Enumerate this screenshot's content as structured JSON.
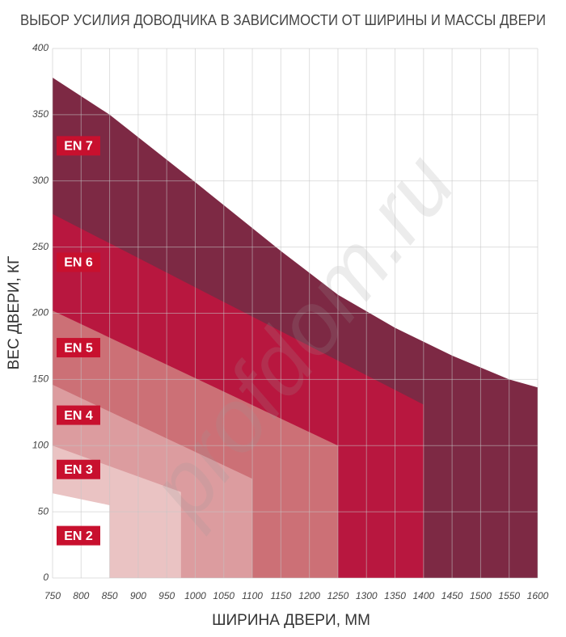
{
  "chart_data": {
    "type": "area",
    "title": "ВЫБОР УСИЛИЯ ДОВОДЧИКА В ЗАВИСИМОСТИ ОТ ШИРИНЫ И МАССЫ ДВЕРИ",
    "x_label": "ШИРИНА ДВЕРИ, ММ",
    "y_label": "ВЕС ДВЕРИ, КГ",
    "watermark": "profdom.ru",
    "xlim": [
      750,
      1600
    ],
    "xticks": [
      750,
      800,
      850,
      900,
      950,
      1000,
      1050,
      1100,
      1150,
      1200,
      1250,
      1300,
      1350,
      1400,
      1450,
      1500,
      1550,
      1600
    ],
    "ylim": [
      0,
      400
    ],
    "yticks": [
      0,
      50,
      100,
      150,
      200,
      250,
      300,
      350,
      400
    ],
    "grid": true,
    "label_color": "#c8102e",
    "series": [
      {
        "name": "EN 7",
        "color": "#7d2944",
        "x": [
          750,
          850,
          1000,
          1150,
          1250,
          1350,
          1450,
          1550,
          1600
        ],
        "values": [
          378,
          350,
          299,
          247,
          214,
          189,
          168,
          150,
          144
        ]
      },
      {
        "name": "EN 6",
        "color": "#b8173f",
        "x": [
          750,
          1400
        ],
        "values": [
          275,
          131
        ]
      },
      {
        "name": "EN 5",
        "color": "#cc7076",
        "x": [
          750,
          1250
        ],
        "values": [
          202,
          100
        ]
      },
      {
        "name": "EN 4",
        "color": "#dc9c9f",
        "x": [
          750,
          1100
        ],
        "values": [
          146,
          75
        ]
      },
      {
        "name": "EN 3",
        "color": "#eac3c3",
        "x": [
          750,
          975
        ],
        "values": [
          100,
          65
        ]
      },
      {
        "name": "EN 2",
        "color": "#ffffff",
        "x": [
          750,
          850
        ],
        "values": [
          64,
          55
        ]
      }
    ]
  }
}
